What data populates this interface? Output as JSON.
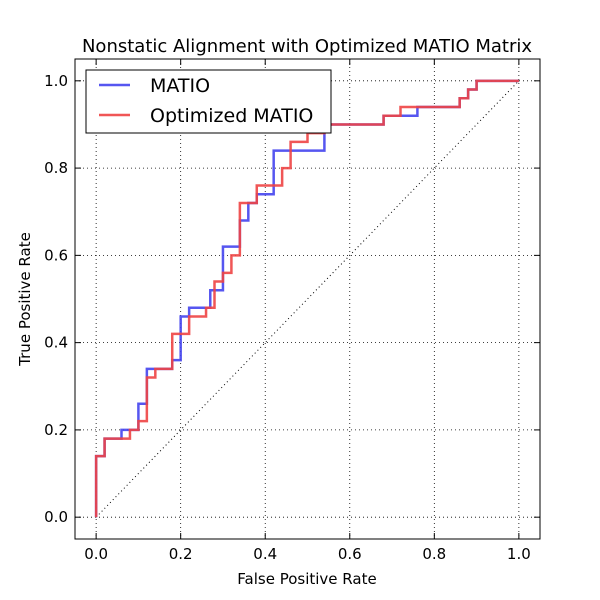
{
  "chart_data": {
    "type": "line",
    "title": "Nonstatic Alignment with Optimized MATIO Matrix",
    "xlabel": "False Positive Rate",
    "ylabel": "True Positive Rate",
    "xlim": [
      -0.05,
      1.05
    ],
    "ylim": [
      -0.05,
      1.05
    ],
    "xticks": [
      "0.0",
      "0.2",
      "0.4",
      "0.6",
      "0.8",
      "1.0"
    ],
    "yticks": [
      "0.0",
      "0.2",
      "0.4",
      "0.6",
      "0.8",
      "1.0"
    ],
    "grid": true,
    "legend_position": "top-left",
    "diagonal_reference": {
      "x": [
        0,
        1
      ],
      "y": [
        0,
        1
      ],
      "color": "#000000",
      "style": "dotted"
    },
    "series": [
      {
        "name": "MATIO",
        "color": "#4444ee",
        "x": [
          0.0,
          0.0,
          0.02,
          0.02,
          0.06,
          0.06,
          0.1,
          0.1,
          0.12,
          0.12,
          0.18,
          0.18,
          0.2,
          0.2,
          0.22,
          0.22,
          0.27,
          0.27,
          0.3,
          0.3,
          0.34,
          0.34,
          0.36,
          0.36,
          0.38,
          0.38,
          0.42,
          0.42,
          0.54,
          0.54,
          0.6,
          0.6,
          0.68,
          0.68,
          0.76,
          0.76,
          0.86,
          0.86,
          0.88,
          0.88,
          0.9,
          0.9,
          1.0
        ],
        "y": [
          0.0,
          0.14,
          0.14,
          0.18,
          0.18,
          0.2,
          0.2,
          0.26,
          0.26,
          0.34,
          0.34,
          0.36,
          0.36,
          0.46,
          0.46,
          0.48,
          0.48,
          0.52,
          0.52,
          0.62,
          0.62,
          0.68,
          0.68,
          0.72,
          0.72,
          0.74,
          0.74,
          0.84,
          0.84,
          0.9,
          0.9,
          0.9,
          0.9,
          0.92,
          0.92,
          0.94,
          0.94,
          0.96,
          0.96,
          0.98,
          0.98,
          1.0,
          1.0
        ]
      },
      {
        "name": "Optimized MATIO",
        "color": "#ee4444",
        "x": [
          0.0,
          0.0,
          0.02,
          0.02,
          0.08,
          0.08,
          0.1,
          0.1,
          0.12,
          0.12,
          0.14,
          0.14,
          0.18,
          0.18,
          0.22,
          0.22,
          0.26,
          0.26,
          0.28,
          0.28,
          0.3,
          0.3,
          0.32,
          0.32,
          0.34,
          0.34,
          0.38,
          0.38,
          0.44,
          0.44,
          0.46,
          0.46,
          0.5,
          0.5,
          0.54,
          0.54,
          0.62,
          0.62,
          0.68,
          0.68,
          0.72,
          0.72,
          0.86,
          0.86,
          0.88,
          0.88,
          0.9,
          0.9,
          1.0
        ],
        "y": [
          0.0,
          0.14,
          0.14,
          0.18,
          0.18,
          0.2,
          0.2,
          0.22,
          0.22,
          0.32,
          0.32,
          0.34,
          0.34,
          0.42,
          0.42,
          0.46,
          0.46,
          0.48,
          0.48,
          0.54,
          0.54,
          0.56,
          0.56,
          0.6,
          0.6,
          0.72,
          0.72,
          0.76,
          0.76,
          0.8,
          0.8,
          0.86,
          0.86,
          0.88,
          0.88,
          0.9,
          0.9,
          0.9,
          0.9,
          0.92,
          0.92,
          0.94,
          0.94,
          0.96,
          0.96,
          0.98,
          0.98,
          1.0,
          1.0
        ]
      }
    ]
  }
}
